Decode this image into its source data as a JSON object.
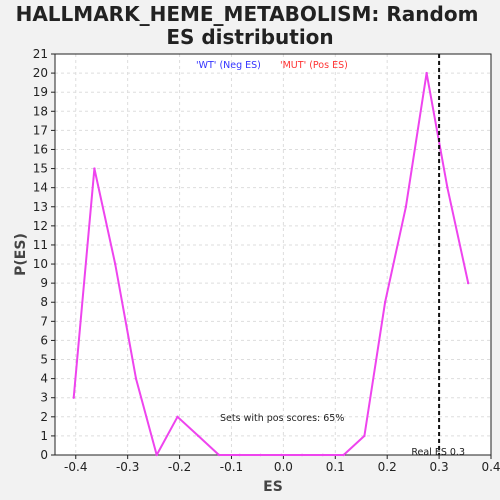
{
  "chart_data": {
    "type": "line",
    "title_line1": "HALLMARK_HEME_METABOLISM: Random",
    "title_line2": "ES distribution",
    "xlabel": "ES",
    "ylabel": "P(ES)",
    "xlim": [
      -0.44,
      0.4
    ],
    "ylim": [
      0,
      21
    ],
    "x_ticks": [
      -0.4,
      -0.3,
      -0.2,
      -0.1,
      0.0,
      0.1,
      0.2,
      0.3,
      0.4
    ],
    "x_tick_labels": [
      "-0.4",
      "-0.3",
      "-0.2",
      "-0.1",
      "0.0",
      "0.1",
      "0.2",
      "0.3",
      "0.4"
    ],
    "y_ticks": [
      0,
      1,
      2,
      3,
      4,
      5,
      6,
      7,
      8,
      9,
      10,
      11,
      12,
      13,
      14,
      15,
      16,
      17,
      18,
      19,
      20,
      21
    ],
    "grid": true,
    "legend": [
      {
        "label": "'WT' (Neg ES)",
        "color": "#3333ff"
      },
      {
        "label": "'MUT' (Pos ES)",
        "color": "#ff3333"
      }
    ],
    "series": [
      {
        "color": "#ee44ee",
        "x": [
          -0.404,
          -0.364,
          -0.324,
          -0.284,
          -0.244,
          -0.204,
          -0.164,
          -0.124,
          -0.084,
          -0.044,
          -0.004,
          0.036,
          0.076,
          0.116,
          0.156,
          0.196,
          0.236,
          0.276,
          0.316,
          0.356
        ],
        "y": [
          3,
          15,
          10,
          4,
          0,
          2,
          1,
          0,
          0,
          0,
          0,
          0,
          0,
          0,
          1,
          8,
          13,
          20,
          14,
          9
        ]
      }
    ],
    "vline": {
      "x": 0.3,
      "label": "Real ES 0.3"
    },
    "annotation": "Sets with pos scores: 65%"
  }
}
